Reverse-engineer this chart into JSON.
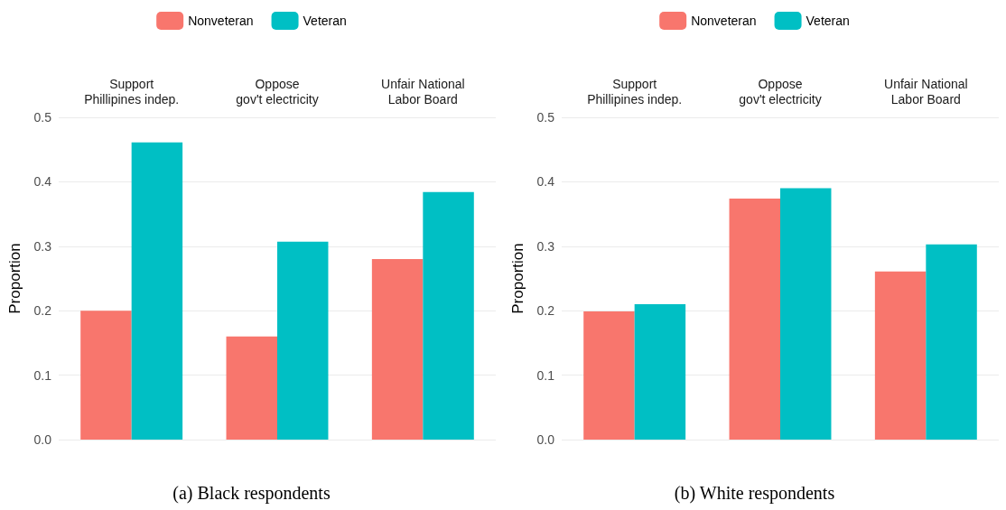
{
  "chart_data": [
    {
      "type": "bar",
      "title": "(a) Black respondents",
      "ylabel": "Proportion",
      "categories": [
        "Support\nPhillipines indep.",
        "Oppose\ngov't electricity",
        "Unfair National\nLabor Board"
      ],
      "series": [
        {
          "name": "Nonveteran",
          "color": "#f8766d",
          "values": [
            0.2,
            0.16,
            0.28
          ]
        },
        {
          "name": "Veteran",
          "color": "#00bfc4",
          "values": [
            0.461,
            0.307,
            0.384
          ]
        }
      ],
      "ylim": [
        0,
        0.5
      ],
      "yticks": [
        {
          "value": 0,
          "label": "0.0"
        },
        0.1,
        0.2,
        0.3,
        0.4,
        0.5
      ],
      "grid": "y",
      "legend": "top"
    },
    {
      "type": "bar",
      "title": "(b) White respondents",
      "ylabel": "Proportion",
      "categories": [
        "Support\nPhillipines indep.",
        "Oppose\ngov't electricity",
        "Unfair National\nLabor Board"
      ],
      "series": [
        {
          "name": "Nonveteran",
          "color": "#f8766d",
          "values": [
            0.199,
            0.374,
            0.261
          ]
        },
        {
          "name": "Veteran",
          "color": "#00bfc4",
          "values": [
            0.21,
            0.39,
            0.303
          ]
        }
      ],
      "ylim": [
        0,
        0.5
      ],
      "yticks": [
        {
          "value": 0,
          "label": "0.0"
        },
        0.1,
        0.2,
        0.3,
        0.4,
        0.5
      ],
      "grid": "y",
      "legend": "top"
    }
  ]
}
